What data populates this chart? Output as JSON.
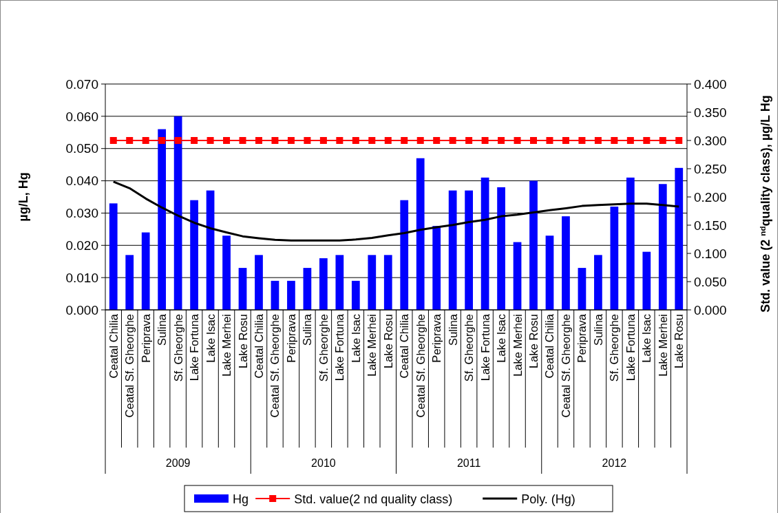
{
  "chart_data": {
    "type": "bar",
    "ylabel": "µg/L, Hg",
    "y2label": "Std. value (2 $^{nd}$quality class), µg/L Hg",
    "categories": [
      "Ceatal Chilia",
      "Ceatal Sf. Gheorghe",
      "Periprava",
      "Sulina",
      "Sf. Gheorghe",
      "Lake Fortuna",
      "Lake Isac",
      "Lake Merhei",
      "Lake Rosu",
      "Ceatal Chilia",
      "Ceatal Sf. Gheorghe",
      "Periprava",
      "Sulina",
      "Sf. Gheorghe",
      "Lake Fortuna",
      "Lake Isac",
      "Lake Merhei",
      "Lake Rosu",
      "Ceatal Chilia",
      "Ceatal Sf. Gheorghe",
      "Periprava",
      "Sulina",
      "Sf. Gheorghe",
      "Lake Fortuna",
      "Lake Isac",
      "Lake Merhei",
      "Lake Rosu",
      "Ceatal Chilia",
      "Ceatal Sf. Gheorghe",
      "Periprava",
      "Sulina",
      "Sf. Gheorghe",
      "Lake Fortuna",
      "Lake Isac",
      "Lake Merhei",
      "Lake Rosu"
    ],
    "series": [
      {
        "name": "Hg",
        "color": "#0000ff",
        "values": [
          0.033,
          0.017,
          0.024,
          0.056,
          0.06,
          0.034,
          0.037,
          0.023,
          0.013,
          0.017,
          0.009,
          0.009,
          0.013,
          0.016,
          0.017,
          0.009,
          0.017,
          0.017,
          0.034,
          0.047,
          0.026,
          0.037,
          0.037,
          0.041,
          0.038,
          0.021,
          0.04,
          0.023,
          0.029,
          0.013,
          0.017,
          0.032,
          0.041,
          0.018,
          0.039,
          0.044
        ]
      },
      {
        "name": "Std. value(2 nd quality class)",
        "type": "line",
        "axis": "y2",
        "color": "#ff0000",
        "marker": "square",
        "values": [
          0.3,
          0.3,
          0.3,
          0.3,
          0.3,
          0.3,
          0.3,
          0.3,
          0.3,
          0.3,
          0.3,
          0.3,
          0.3,
          0.3,
          0.3,
          0.3,
          0.3,
          0.3,
          0.3,
          0.3,
          0.3,
          0.3,
          0.3,
          0.3,
          0.3,
          0.3,
          0.3,
          0.3,
          0.3,
          0.3,
          0.3,
          0.3,
          0.3,
          0.3,
          0.3,
          0.3
        ]
      },
      {
        "name": "Poly. (Hg)",
        "type": "line",
        "color": "#000000",
        "marker": "none",
        "values": [
          0.0397,
          0.0377,
          0.0345,
          0.0317,
          0.0292,
          0.027,
          0.0253,
          0.024,
          0.0228,
          0.0222,
          0.0217,
          0.0215,
          0.0215,
          0.0215,
          0.0215,
          0.0218,
          0.0223,
          0.0231,
          0.0238,
          0.0248,
          0.0256,
          0.0263,
          0.0272,
          0.0279,
          0.029,
          0.0295,
          0.0302,
          0.0309,
          0.0315,
          0.0322,
          0.0325,
          0.0327,
          0.0329,
          0.0329,
          0.0325,
          0.032
        ]
      }
    ],
    "ylim": [
      0,
      0.07
    ],
    "yticks": [
      {
        "value": 0,
        "label": "0.000"
      },
      {
        "value": 0.01,
        "label": "0.010"
      },
      {
        "value": 0.02,
        "label": "0.020"
      },
      {
        "value": 0.03,
        "label": "0.030"
      },
      {
        "value": 0.04,
        "label": "0.040"
      },
      {
        "value": 0.05,
        "label": "0.050"
      },
      {
        "value": 0.06,
        "label": "0.060"
      },
      {
        "value": 0.07,
        "label": "0.070"
      }
    ],
    "y2lim": [
      0,
      0.4
    ],
    "y2ticks": [
      {
        "value": 0,
        "label": "0.000"
      },
      {
        "value": 0.05,
        "label": "0.050"
      },
      {
        "value": 0.1,
        "label": "0.100"
      },
      {
        "value": 0.15,
        "label": "0.150"
      },
      {
        "value": 0.2,
        "label": "0.200"
      },
      {
        "value": 0.25,
        "label": "0.250"
      },
      {
        "value": 0.3,
        "label": "0.300"
      },
      {
        "value": 0.35,
        "label": "0.350"
      },
      {
        "value": 0.4,
        "label": "0.400"
      }
    ],
    "annotations": [
      "2009",
      "2010",
      "2011",
      "2012"
    ],
    "grid": "y",
    "legend": "bottom"
  }
}
